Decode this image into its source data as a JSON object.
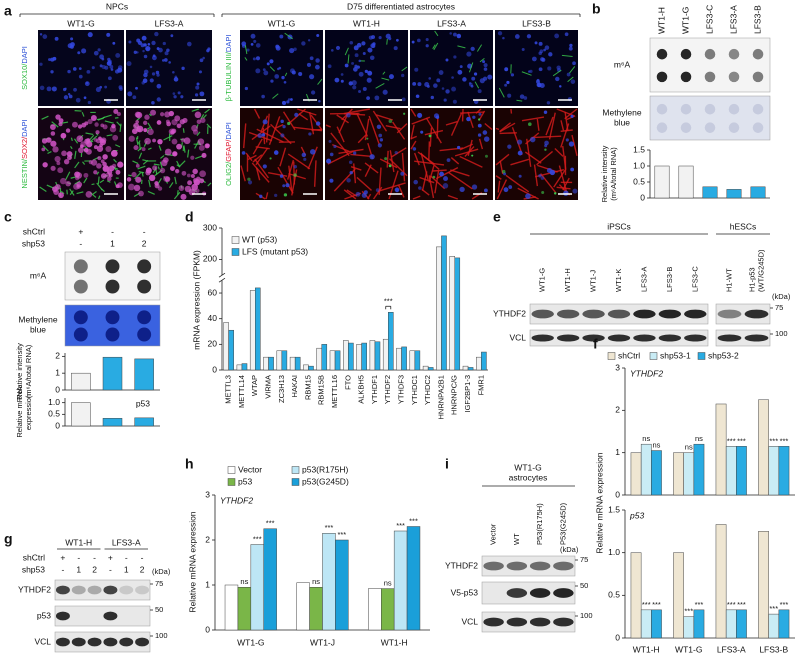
{
  "a": {
    "letter": "a",
    "groups": [
      {
        "title": "NPCs",
        "columns": [
          "WT1-G",
          "LFS3-A"
        ],
        "rows": [
          [
            {
              "text": "SOX10/",
              "color": "#27b83a"
            },
            {
              "text": "DAPI",
              "color": "#2a4fd6"
            }
          ],
          [
            {
              "text": "NESTIN/",
              "color": "#27b83a"
            },
            {
              "text": "SOX2/",
              "color": "#e0102a"
            },
            {
              "text": "DAPI",
              "color": "#2a4fd6"
            }
          ]
        ]
      },
      {
        "title": "D75 differentiated astrocytes",
        "columns": [
          "WT1-G",
          "WT1-H",
          "LFS3-A",
          "LFS3-B"
        ],
        "rows": [
          [
            {
              "text": "β-TUBULIN III/",
              "color": "#27b83a"
            },
            {
              "text": "DAPI",
              "color": "#2a4fd6"
            }
          ],
          [
            {
              "text": "OLIG2/",
              "color": "#27b83a"
            },
            {
              "text": "GFAP/",
              "color": "#e0102a"
            },
            {
              "text": "DAPI",
              "color": "#2a4fd6"
            }
          ]
        ]
      }
    ]
  },
  "b": {
    "letter": "b",
    "blots": [
      [
        "m⁶A"
      ],
      [
        "Methylene",
        "blue"
      ]
    ],
    "chart": {
      "categories": [
        "WT1-H",
        "WT1-G",
        "LFS3-C",
        "LFS3-A",
        "LFS3-B"
      ],
      "values": [
        1.0,
        1.0,
        0.35,
        0.27,
        0.35
      ],
      "colors": [
        "#f2f2f2",
        "#f2f2f2",
        "#29abe2",
        "#29abe2",
        "#29abe2"
      ],
      "ylim": [
        0,
        1.5
      ],
      "yticks": [
        0,
        0.5,
        {
          "value": 1,
          "label": "1.0"
        },
        1.5
      ],
      "ylabel": [
        "Relative intensity",
        "(m⁶A/total RNA)"
      ]
    }
  },
  "c": {
    "letter": "c",
    "conditions": [
      {
        "label": "shCtrl",
        "marks": [
          "+",
          "-",
          "-"
        ]
      },
      {
        "label": "shp53",
        "marks": [
          "-",
          "1",
          "2"
        ]
      }
    ],
    "blots": [
      [
        "m⁶A"
      ],
      [
        "Methylene",
        "blue"
      ]
    ],
    "charts": [
      {
        "values": [
          1.0,
          1.95,
          1.85
        ],
        "colors": [
          "#f2f2f2",
          "#29abe2",
          "#29abe2"
        ],
        "ylim": [
          0,
          2.2
        ],
        "yticks": [
          0,
          1,
          2
        ],
        "ylabel": [
          "Relative intensity",
          "(m⁶A/total RNA)"
        ]
      },
      {
        "title": "p53",
        "values": [
          1.0,
          0.33,
          0.35
        ],
        "colors": [
          "#f2f2f2",
          "#29abe2",
          "#29abe2"
        ],
        "ylim": [
          0,
          1.2
        ],
        "yticks": [
          0,
          0.5,
          {
            "value": 1,
            "label": "1.0"
          }
        ],
        "ylabel": [
          "Relative mRNA",
          "expression"
        ]
      }
    ]
  },
  "d": {
    "letter": "d",
    "chart": {
      "categories": [
        "METTL3",
        "METTL14",
        "WTAP",
        "VIRMA",
        "ZC3H13",
        "HAKAI",
        "RBM15",
        "RBM15B",
        "METTL16",
        "FTO",
        "ALKBH5",
        "YTHDF1",
        "YTHDF2",
        "YTHDF3",
        "YTHDC1",
        "YTHDC2",
        "HNRNPA2B1",
        "HNRNPC/G",
        "IGF2BP1-3",
        "FMR1"
      ],
      "series": [
        {
          "name": "WT (p53)",
          "color": "#f2f2f2",
          "values": [
            37,
            4,
            62,
            10,
            15,
            10,
            4,
            17,
            15,
            23,
            20,
            23,
            24,
            17,
            15,
            3,
            240,
            210,
            3,
            10
          ]
        },
        {
          "name": "LFS (mutant p53)",
          "color": "#29abe2",
          "values": [
            31,
            5,
            64,
            10,
            15,
            10,
            3,
            20,
            15,
            21,
            21,
            22,
            45,
            18,
            15,
            2,
            275,
            205,
            2,
            14
          ]
        }
      ],
      "annotations": [
        null,
        null,
        null,
        null,
        null,
        null,
        null,
        null,
        null,
        null,
        null,
        null,
        "***",
        null,
        null,
        null,
        null,
        null,
        null,
        null
      ],
      "ylim": [
        0,
        300
      ],
      "ybreak": [
        70,
        150
      ],
      "yticks": [
        0,
        20,
        40,
        60,
        200,
        300
      ],
      "ylabel": "mRNA expression (FPKM)"
    }
  },
  "e": {
    "letter": "e",
    "groups": [
      {
        "title": "iPSCs",
        "lanes": [
          "WT1-G",
          "WT1-H",
          "WT1-J",
          "WT1-K",
          "LFS3-A",
          "LFS3-B",
          "LFS3-C"
        ]
      },
      {
        "title": "hESCs",
        "lanes": [
          "H1-WT",
          [
            "H1-p53",
            "(WT/G245D)"
          ]
        ]
      }
    ],
    "unit": "(kDa)",
    "rows": [
      {
        "label": "YTHDF2",
        "marker": 75
      },
      {
        "label": "VCL",
        "marker": 100
      }
    ]
  },
  "f": {
    "letter": "f",
    "legend": [
      {
        "name": "shCtrl",
        "color": "#efe6d2"
      },
      {
        "name": "shp53-1",
        "color": "#c9ecf5"
      },
      {
        "name": "shp53-2",
        "color": "#29abe2"
      }
    ],
    "categories": [
      "WT1-H",
      "WT1-G",
      "LFS3-A",
      "LFS3-B"
    ],
    "ylabel": "Relative mRNA expression",
    "charts": [
      {
        "title": "YTHDF2",
        "ylim": [
          0,
          3
        ],
        "yticks": [
          0,
          1,
          2,
          3
        ],
        "series": [
          {
            "values": [
              1.0,
              1.0,
              2.15,
              2.25
            ],
            "annotations": [
              null,
              null,
              null,
              null
            ]
          },
          {
            "values": [
              1.2,
              1.0,
              1.15,
              1.15
            ],
            "annotations": [
              "ns",
              "ns",
              "***",
              "***"
            ]
          },
          {
            "values": [
              1.05,
              1.2,
              1.15,
              1.15
            ],
            "annotations": [
              "ns",
              "ns",
              "***",
              "***"
            ]
          }
        ]
      },
      {
        "title": "p53",
        "ylim": [
          0,
          1.5
        ],
        "yticks": [
          0,
          0.5,
          {
            "value": 1,
            "label": "1.0"
          },
          1.5
        ],
        "series": [
          {
            "values": [
              1.0,
              1.0,
              1.33,
              1.25
            ],
            "annotations": [
              null,
              null,
              null,
              null
            ]
          },
          {
            "values": [
              0.33,
              0.25,
              0.33,
              0.28
            ],
            "annotations": [
              "***",
              "***",
              "***",
              "***"
            ]
          },
          {
            "values": [
              0.33,
              0.33,
              0.33,
              0.33
            ],
            "annotations": [
              "***",
              "***",
              "***",
              "***"
            ]
          }
        ]
      }
    ]
  },
  "g": {
    "letter": "g",
    "groups": [
      "WT1-H",
      "LFS3-A"
    ],
    "conditions": [
      {
        "label": "shCtrl",
        "marks": [
          "+",
          "-",
          "-",
          "+",
          "-",
          "-"
        ]
      },
      {
        "label": "shp53",
        "marks": [
          "-",
          "1",
          "2",
          "-",
          "1",
          "2"
        ]
      }
    ],
    "unit": "(kDa)",
    "rows": [
      {
        "label": "YTHDF2",
        "marker": 75
      },
      {
        "label": "p53",
        "marker": 50
      },
      {
        "label": "VCL",
        "marker": 100
      }
    ]
  },
  "h": {
    "letter": "h",
    "chart": {
      "title": "YTHDF2",
      "categories": [
        "WT1-G",
        "WT1-J",
        "WT1-H"
      ],
      "series": [
        {
          "name": "Vector",
          "color": "#ffffff",
          "values": [
            1.0,
            1.05,
            0.92
          ],
          "annotations": [
            null,
            null,
            null
          ]
        },
        {
          "name": "p53",
          "color": "#7ab648",
          "values": [
            0.95,
            0.95,
            0.92
          ],
          "annotations": [
            "ns",
            "ns",
            "ns"
          ]
        },
        {
          "name": "p53(R175H)",
          "color": "#bde6f5",
          "values": [
            1.9,
            2.15,
            2.2
          ],
          "annotations": [
            "***",
            "***",
            "***"
          ]
        },
        {
          "name": "p53(G245D)",
          "color": "#1a9fd9",
          "values": [
            2.25,
            2.0,
            2.3
          ],
          "annotations": [
            "***",
            "***",
            "***"
          ]
        }
      ],
      "ylim": [
        0,
        3
      ],
      "yticks": [
        0,
        1,
        2,
        3
      ],
      "ylabel": "Relative mRNA expression"
    }
  },
  "i": {
    "letter": "i",
    "title": [
      "WT1-G",
      "astrocytes"
    ],
    "lanes": [
      "Vector",
      "WT",
      "P53(R175H)",
      "P53(G245D)"
    ],
    "unit": "(kDa)",
    "rows": [
      {
        "label": "YTHDF2",
        "marker": 75
      },
      {
        "label": "V5-p53",
        "marker": 50
      },
      {
        "label": "VCL",
        "marker": 100
      }
    ]
  }
}
